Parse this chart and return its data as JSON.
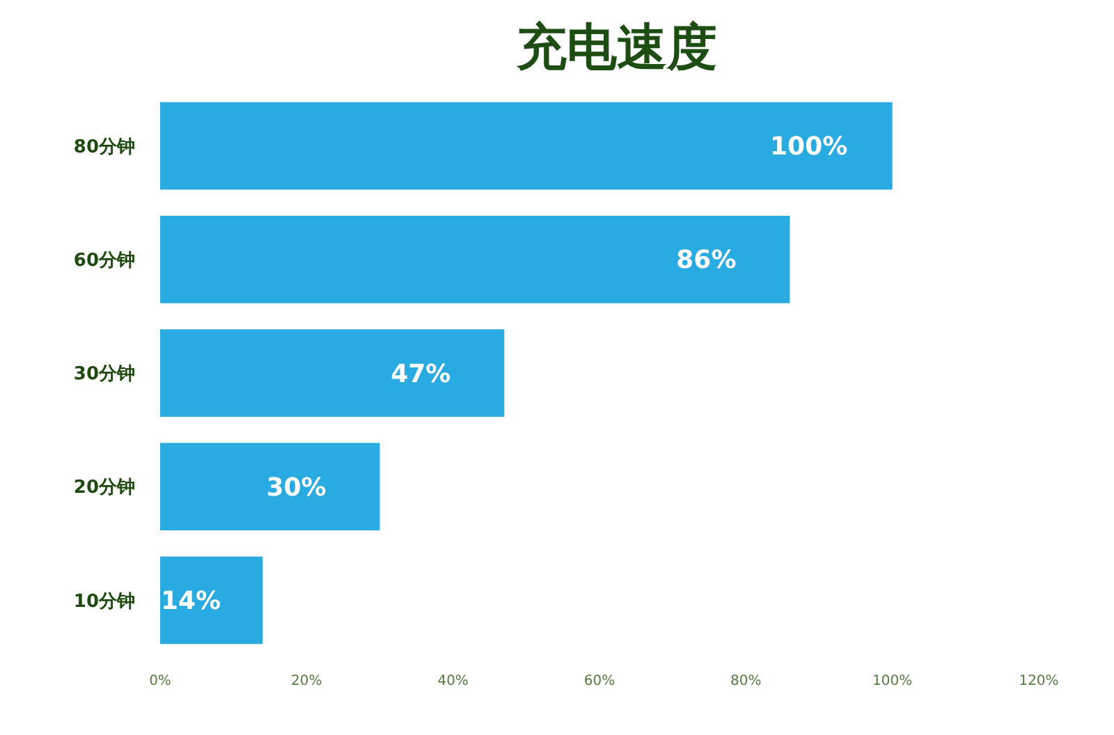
{
  "chart_data": {
    "type": "bar",
    "orientation": "horizontal",
    "title": "充电速度",
    "categories": [
      "80分钟",
      "60分钟",
      "30分钟",
      "20分钟",
      "10分钟"
    ],
    "values": [
      100,
      86,
      47,
      30,
      14
    ],
    "color": "#29abe2",
    "value_labels": [
      "100%",
      "86%",
      "47%",
      "30%",
      "14%"
    ],
    "xlim": [
      0,
      120
    ],
    "xticks": [
      {
        "value": 0,
        "label": "0%"
      },
      {
        "value": 20,
        "label": "20%"
      },
      {
        "value": 40,
        "label": "40%"
      },
      {
        "value": 60,
        "label": "60%"
      },
      {
        "value": 80,
        "label": "80%"
      },
      {
        "value": 100,
        "label": "100%"
      },
      {
        "value": 120,
        "label": "120%"
      }
    ]
  }
}
